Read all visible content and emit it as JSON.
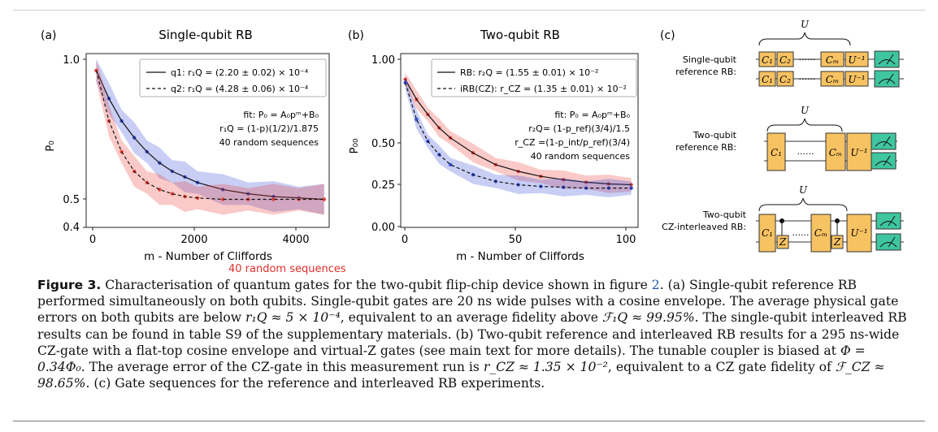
{
  "panels": {
    "a": {
      "label": "(a)",
      "title": "Single-qubit RB",
      "ylabel": "P₀",
      "xlabel": "m - Number of Cliffords",
      "yticks": [
        "1.0",
        "0.5",
        "0.4"
      ],
      "xticks": [
        "0",
        "2000",
        "4000"
      ],
      "legend": [
        {
          "style": "solid",
          "text": "q1: r₁Q = (2.20 ± 0.02) × 10⁻⁴"
        },
        {
          "style": "dashed",
          "text": "q2: r₁Q = (4.28 ± 0.06) × 10⁻⁴"
        }
      ],
      "annotation": [
        "fit: P₀ = A₀pᵐ+B₀",
        "r₁Q = (1-p)(1/2)/1.875",
        "40 random sequences"
      ]
    },
    "b": {
      "label": "(b)",
      "title": "Two-qubit RB",
      "ylabel": "P₀₀",
      "xlabel": "m - Number of Cliffords",
      "yticks": [
        "1.00",
        "0.50",
        "0.25",
        "0.00"
      ],
      "xticks": [
        "0",
        "50",
        "100"
      ],
      "legend": [
        {
          "style": "solid",
          "text": "RB: r₂Q = (1.55 ± 0.01) × 10⁻²"
        },
        {
          "style": "dashed",
          "text": "iRB(CZ): r_CZ = (1.35 ± 0.01) × 10⁻²"
        }
      ],
      "annotation": [
        "fit: P₀ = A₀pᵐ+B₀",
        "r₂Q= (1-p_ref)(3/4)/1.5",
        "r_CZ =(1-p_int/p_ref)(3/4)",
        "40 random sequences"
      ]
    },
    "c": {
      "label": "(c)",
      "rows": [
        {
          "label": [
            "Single-qubit",
            "reference RB:"
          ],
          "brace": "U"
        },
        {
          "label": [
            "Two-qubit",
            "reference RB:"
          ],
          "brace": "U"
        },
        {
          "label": [
            "Two-qubit",
            "CZ-interleaved RB:"
          ],
          "brace": "U"
        }
      ],
      "gates": {
        "c1": "C₁",
        "c2": "C₂",
        "cm": "Cₘ",
        "uinv": "U⁻¹",
        "z": "Z",
        "dots": "......"
      }
    }
  },
  "red_note": "40 random sequences",
  "colors": {
    "red": "#e8403a",
    "blue": "#3a4fd8",
    "gate_fill": "#f7c262",
    "meter_fill": "#3fc5a0"
  },
  "chart_data": [
    {
      "type": "line",
      "title": "Single-qubit RB",
      "xlabel": "m - Number of Cliffords",
      "ylabel": "P₀",
      "xlim": [
        -200,
        4600
      ],
      "ylim": [
        0.4,
        1.0
      ],
      "series": [
        {
          "name": "q1: r₁Q = (2.20 ± 0.02) × 10⁻⁴",
          "style": "solid",
          "color": "#3a4fd8",
          "x": [
            0,
            250,
            500,
            750,
            1000,
            1250,
            1500,
            1750,
            2000,
            2500,
            3000,
            3500,
            4000,
            4500
          ],
          "y": [
            0.96,
            0.86,
            0.78,
            0.72,
            0.67,
            0.63,
            0.6,
            0.58,
            0.56,
            0.535,
            0.52,
            0.51,
            0.505,
            0.5
          ]
        },
        {
          "name": "q2: r₁Q = (4.28 ± 0.06) × 10⁻⁴",
          "style": "dashed",
          "color": "#e8403a",
          "x": [
            0,
            250,
            500,
            750,
            1000,
            1250,
            1500,
            1750,
            2000,
            2500,
            3000,
            3500,
            4000,
            4500
          ],
          "y": [
            0.96,
            0.78,
            0.67,
            0.6,
            0.56,
            0.535,
            0.52,
            0.51,
            0.505,
            0.5,
            0.5,
            0.5,
            0.5,
            0.5
          ]
        }
      ]
    },
    {
      "type": "line",
      "title": "Two-qubit RB",
      "xlabel": "m - Number of Cliffords",
      "ylabel": "P₀₀",
      "xlim": [
        -2,
        103
      ],
      "ylim": [
        0.0,
        1.0
      ],
      "series": [
        {
          "name": "RB: r₂Q = (1.55 ± 0.01) × 10⁻²",
          "style": "solid",
          "color": "#e8403a",
          "x": [
            0,
            5,
            10,
            15,
            20,
            30,
            40,
            50,
            60,
            70,
            80,
            90,
            100
          ],
          "y": [
            0.88,
            0.76,
            0.67,
            0.59,
            0.53,
            0.44,
            0.37,
            0.33,
            0.3,
            0.28,
            0.265,
            0.255,
            0.25
          ]
        },
        {
          "name": "iRB(CZ): r_CZ = (1.35 ± 0.01) × 10⁻²",
          "style": "dashed",
          "color": "#3a4fd8",
          "x": [
            0,
            5,
            10,
            15,
            20,
            30,
            40,
            50,
            60,
            70,
            80,
            90,
            100
          ],
          "y": [
            0.86,
            0.64,
            0.51,
            0.43,
            0.37,
            0.31,
            0.27,
            0.25,
            0.24,
            0.235,
            0.23,
            0.23,
            0.23
          ]
        }
      ]
    }
  ],
  "caption": {
    "head": "Figure 3.",
    "p1": " Characterisation of quantum gates for the two-qubit flip-chip device shown in figure ",
    "figref": "2",
    "p2": ". (a) Single-qubit reference RB performed simultaneously on both qubits. Single-qubit gates are 20 ns wide pulses with a cosine envelope. The average physical gate errors on both qubits are below ",
    "m1": "r₁Q ≈ 5 × 10⁻⁴",
    "p3": ", equivalent to an average fidelity above ",
    "m2": "ℱ₁Q ≈ 99.95%",
    "p4": ". The single-qubit interleaved RB results can be found in table S9 of the supplementary materials. (b) Two-qubit reference and interleaved RB results for a 295 ns-wide CZ-gate with a flat-top cosine envelope and virtual-Z gates (see main text for more details). The tunable coupler is biased at ",
    "m3": "Φ = 0.34Φ₀",
    "p5": ". The average error of the CZ-gate in this measurement run is ",
    "m4": "r_CZ ≈ 1.35 × 10⁻²",
    "p6": ", equivalent to a CZ gate fidelity of ",
    "m5": "ℱ_CZ ≈ 98.65%",
    "p7": ". (c) Gate sequences for the reference and interleaved RB experiments."
  }
}
